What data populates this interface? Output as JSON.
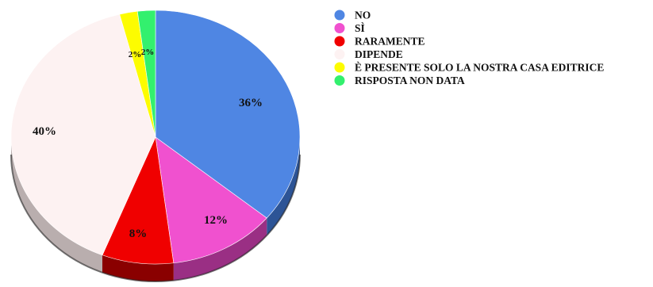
{
  "chart_data": {
    "type": "pie",
    "title": "",
    "categories": [
      "NO",
      "SÌ",
      "RARAMENTE",
      "DIPENDE",
      "È PRESENTE SOLO LA NOSTRA CASA EDITRICE",
      "RISPOSTA NON DATA"
    ],
    "values": [
      36,
      12,
      8,
      40,
      2,
      2
    ],
    "labels": [
      "36%",
      "12%",
      "8%",
      "40%",
      "2%",
      "2%"
    ],
    "colors": [
      "#4f86e3",
      "#f051cf",
      "#f00000",
      "#fdf2f2",
      "#fdfc00",
      "#33f06e"
    ],
    "side_colors": [
      "#2d5496",
      "#9a2f84",
      "#8a0000",
      "#b9aeae",
      "#a6a400",
      "#1f8d42"
    ],
    "legend_placement": "top-right",
    "style": "3d"
  }
}
